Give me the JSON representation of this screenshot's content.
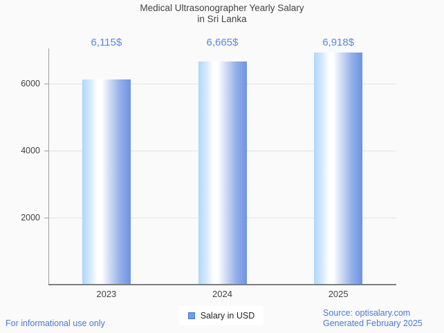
{
  "header": {
    "title_line1": "Medical Ultrasonographer Yearly Salary",
    "title_line2": "in Sri Lanka"
  },
  "chart_data": {
    "type": "bar",
    "title": "Medical Ultrasonographer Yearly Salary in Sri Lanka",
    "categories": [
      "2023",
      "2024",
      "2025"
    ],
    "series": [
      {
        "name": "Salary in USD",
        "values": [
          6115,
          6665,
          6918
        ]
      }
    ],
    "value_labels": [
      "6,115$",
      "6,665$",
      "6,918$"
    ],
    "ylabel": "",
    "xlabel": "",
    "yticks": [
      2000,
      4000,
      6000
    ],
    "ylim": [
      0,
      7050
    ],
    "grid": true,
    "legend_position": "bottom",
    "colors": {
      "bar_gradient_left": "#aed7fb",
      "bar_gradient_mid": "#ffffff",
      "bar_gradient_right": "#6c92e4",
      "value_label": "#5c86db"
    }
  },
  "legend": {
    "label": "Salary in USD",
    "swatch_fill": "#6d9eeb",
    "swatch_border": "#3c78d8"
  },
  "footer": {
    "left": "For informational use only",
    "source": "Source: optisalary.com",
    "generated": "Generated February 2025",
    "text_color": "#5076ce"
  }
}
